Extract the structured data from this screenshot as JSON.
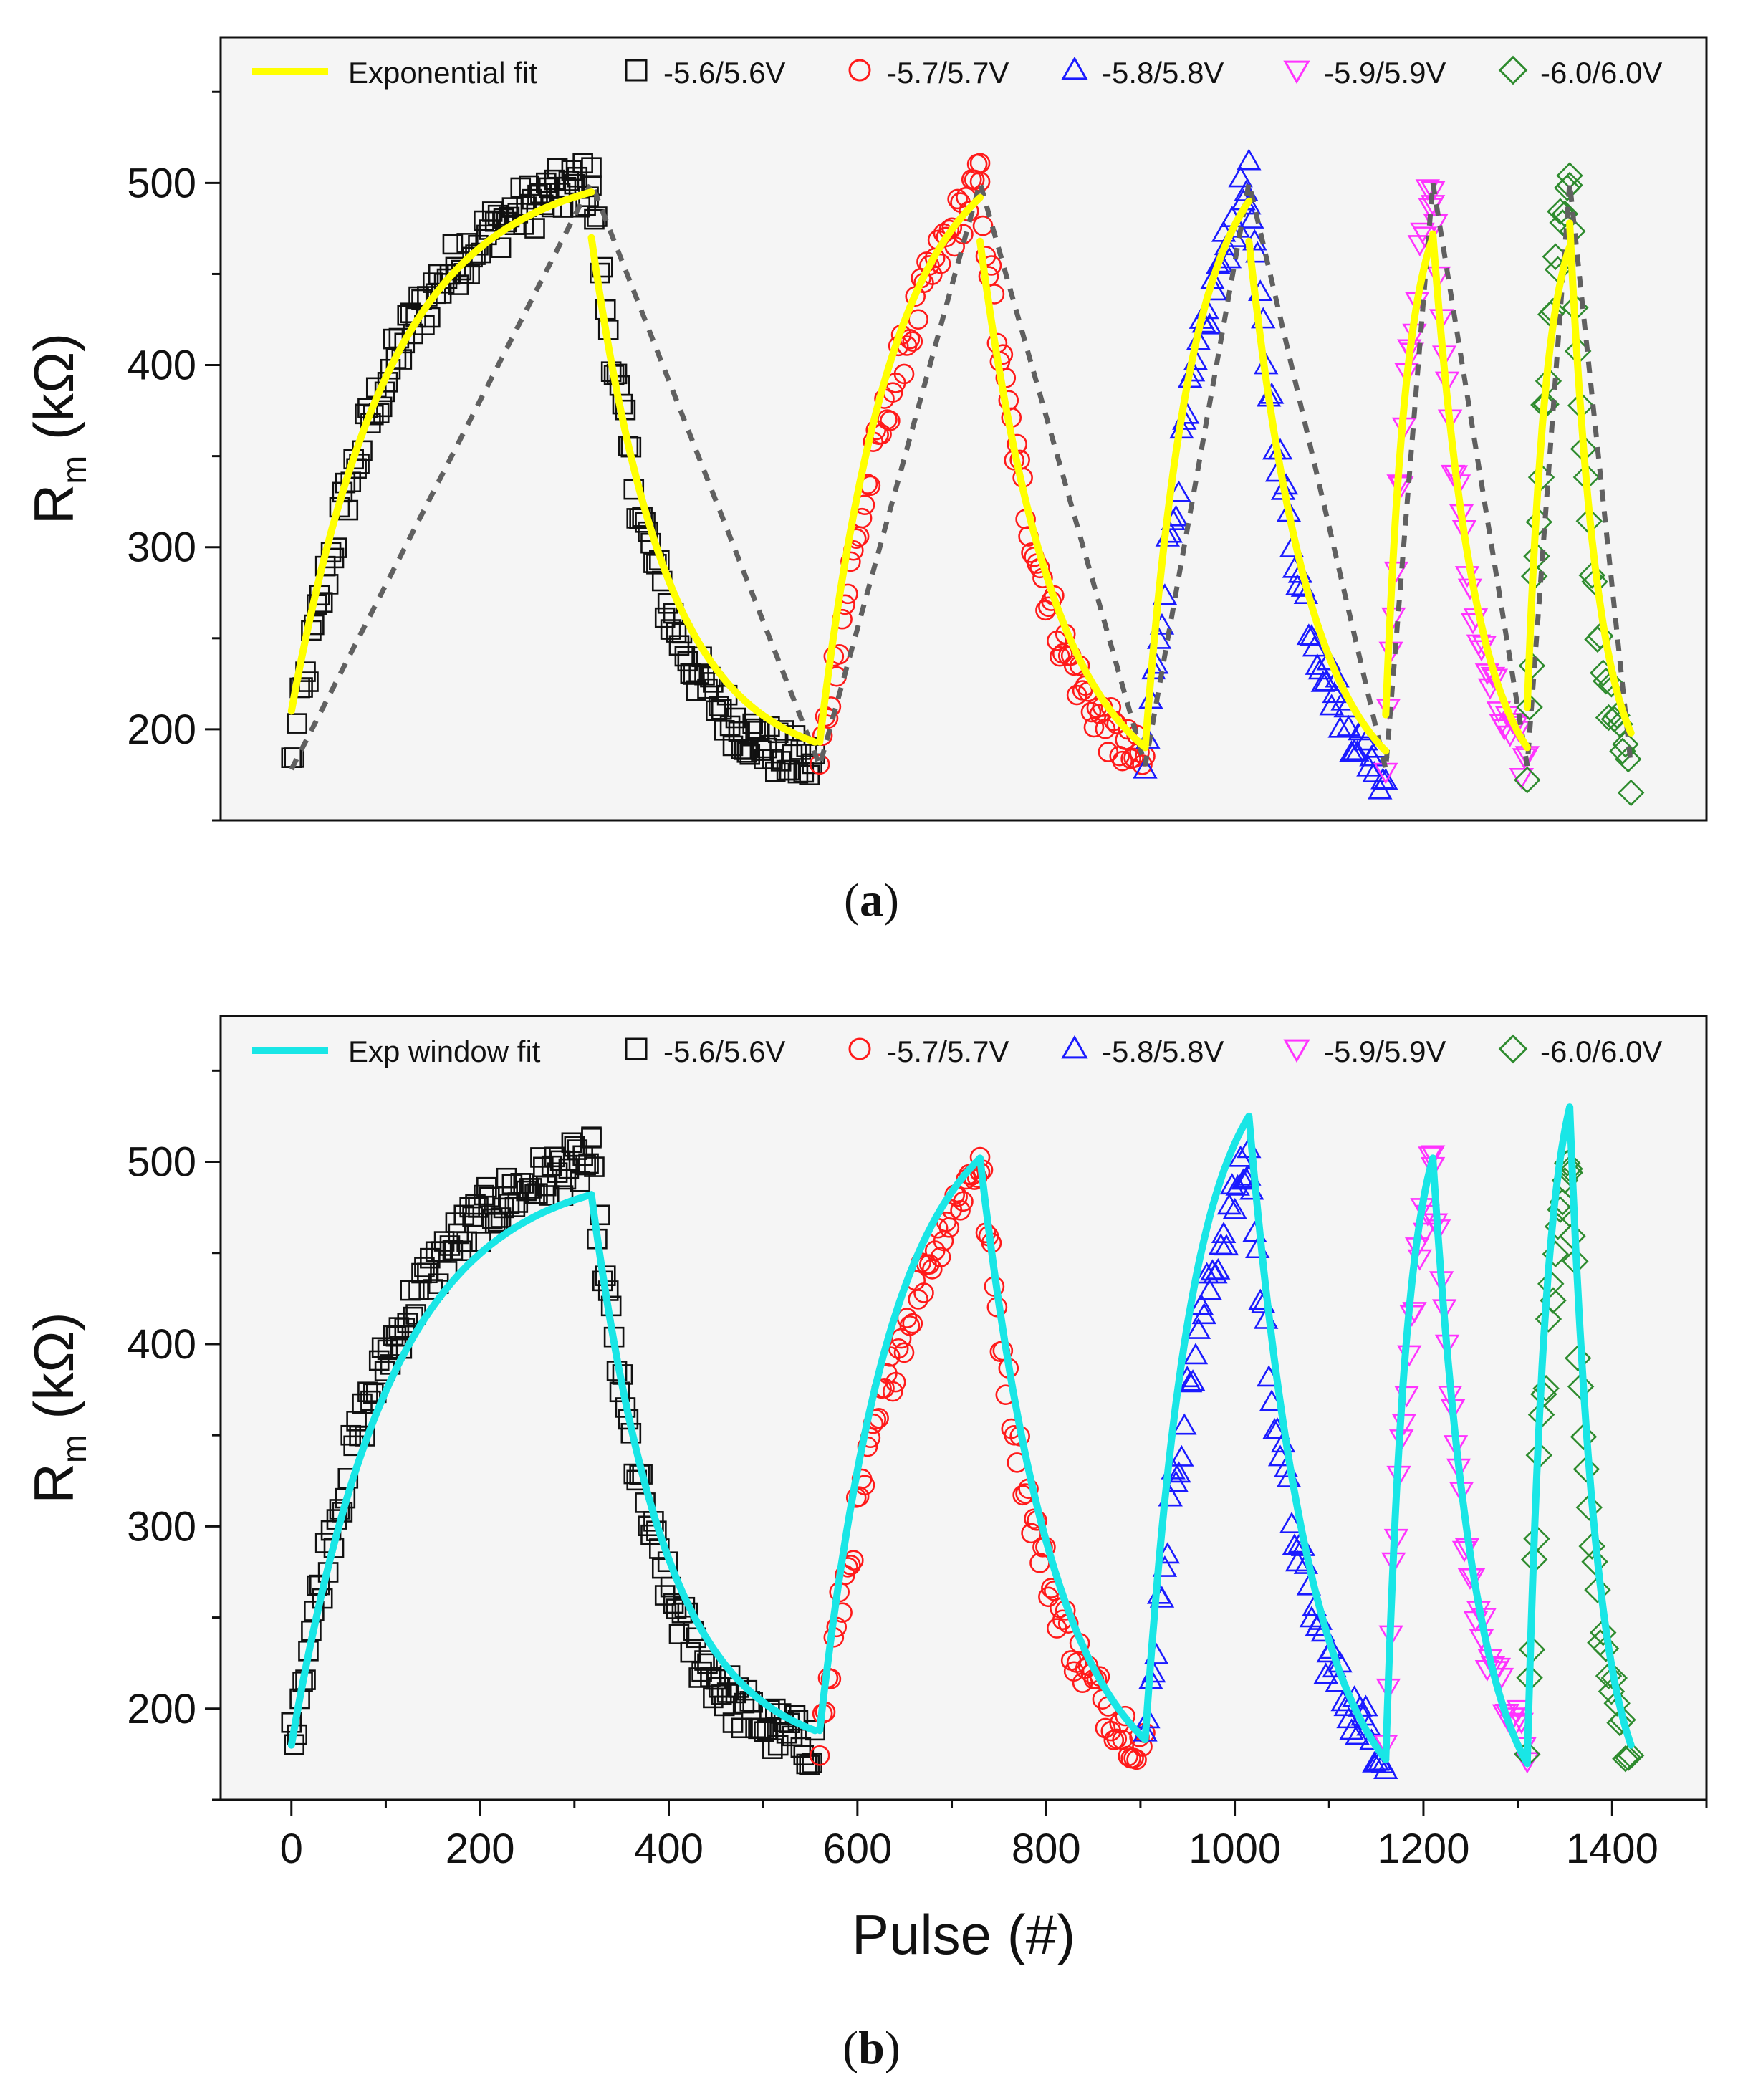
{
  "chart_data": [
    {
      "type": "scatter",
      "panel_label": "a",
      "fit_legend": "Exponential fit",
      "fit_color": "#ffff00",
      "ylabel_main": "R",
      "ylabel_sub": "m",
      "ylabel_unit": " (kΩ)",
      "xlabel": "",
      "xlim": [
        -75,
        1500
      ],
      "ylim": [
        150,
        580
      ],
      "xticks": [],
      "yticks": [
        200,
        300,
        400,
        500
      ],
      "series": [
        {
          "name": "-5.6/5.6V",
          "marker": "square",
          "color": "#111111",
          "x_start": 0,
          "x_peak": 318,
          "x_end": 555,
          "y_min": 180,
          "y_max": 500
        },
        {
          "name": "-5.7/5.7V",
          "marker": "circle",
          "color": "#ff1a1a",
          "x_start": 560,
          "x_peak": 730,
          "x_end": 905,
          "y_min": 180,
          "y_max": 500
        },
        {
          "name": "-5.8/5.8V",
          "marker": "triangle-up",
          "color": "#1a1aff",
          "x_start": 905,
          "x_peak": 1015,
          "x_end": 1160,
          "y_min": 177,
          "y_max": 500
        },
        {
          "name": "-5.9/5.9V",
          "marker": "triangle-down",
          "color": "#ff33ff",
          "x_start": 1160,
          "x_peak": 1210,
          "x_end": 1310,
          "y_min": 180,
          "y_max": 500
        },
        {
          "name": "-6.0/6.0V",
          "marker": "diamond",
          "color": "#2e8b2e",
          "x_start": 1310,
          "x_peak": 1355,
          "x_end": 1420,
          "y_min": 178,
          "y_max": 507
        }
      ],
      "fits": [
        {
          "x": [
            0,
            318
          ],
          "y": [
            210,
            495
          ],
          "shape": "rise"
        },
        {
          "x": [
            318,
            555
          ],
          "y": [
            470,
            193
          ],
          "shape": "decay"
        },
        {
          "x": [
            560,
            730
          ],
          "y": [
            193,
            492
          ],
          "shape": "rise"
        },
        {
          "x": [
            730,
            905
          ],
          "y": [
            468,
            190
          ],
          "shape": "decay"
        },
        {
          "x": [
            905,
            1015
          ],
          "y": [
            190,
            490
          ],
          "shape": "rise"
        },
        {
          "x": [
            1015,
            1160
          ],
          "y": [
            468,
            188
          ],
          "shape": "decay"
        },
        {
          "x": [
            1160,
            1210
          ],
          "y": [
            208,
            470
          ],
          "shape": "rise"
        },
        {
          "x": [
            1210,
            1310
          ],
          "y": [
            472,
            190
          ],
          "shape": "decay"
        },
        {
          "x": [
            1310,
            1355
          ],
          "y": [
            212,
            465
          ],
          "shape": "rise"
        },
        {
          "x": [
            1355,
            1420
          ],
          "y": [
            478,
            198
          ],
          "shape": "decay"
        }
      ],
      "dashed_envelope": {
        "x": [
          0,
          318,
          560,
          730,
          905,
          1015,
          1160,
          1210,
          1310,
          1355,
          1420
        ],
        "y": [
          178,
          500,
          180,
          500,
          180,
          500,
          178,
          500,
          180,
          500,
          180
        ]
      }
    },
    {
      "type": "scatter",
      "panel_label": "b",
      "fit_legend": "Exp window fit",
      "fit_color": "#19e6e6",
      "ylabel_main": "R",
      "ylabel_sub": "m",
      "ylabel_unit": " (kΩ)",
      "xlabel": "Pulse (#)",
      "xlim": [
        -75,
        1500
      ],
      "ylim": [
        150,
        580
      ],
      "xticks": [
        0,
        200,
        400,
        600,
        800,
        1000,
        1200,
        1400
      ],
      "yticks": [
        200,
        300,
        400,
        500
      ],
      "series": [
        {
          "name": "-5.6/5.6V",
          "marker": "square",
          "color": "#111111",
          "x_start": 0,
          "x_peak": 318,
          "x_end": 555,
          "y_min": 180,
          "y_max": 500
        },
        {
          "name": "-5.7/5.7V",
          "marker": "circle",
          "color": "#ff1a1a",
          "x_start": 560,
          "x_peak": 730,
          "x_end": 905,
          "y_min": 180,
          "y_max": 500
        },
        {
          "name": "-5.8/5.8V",
          "marker": "triangle-up",
          "color": "#1a1aff",
          "x_start": 905,
          "x_peak": 1015,
          "x_end": 1160,
          "y_min": 177,
          "y_max": 500
        },
        {
          "name": "-5.9/5.9V",
          "marker": "triangle-down",
          "color": "#ff33ff",
          "x_start": 1160,
          "x_peak": 1210,
          "x_end": 1310,
          "y_min": 180,
          "y_max": 500
        },
        {
          "name": "-6.0/6.0V",
          "marker": "diamond",
          "color": "#2e8b2e",
          "x_start": 1310,
          "x_peak": 1355,
          "x_end": 1420,
          "y_min": 178,
          "y_max": 507
        }
      ],
      "fits": [
        {
          "x": [
            0,
            318
          ],
          "y": [
            180,
            482
          ],
          "shape": "rise"
        },
        {
          "x": [
            318,
            555
          ],
          "y": [
            482,
            188
          ],
          "shape": "decay"
        },
        {
          "x": [
            560,
            730
          ],
          "y": [
            188,
            502
          ],
          "shape": "rise"
        },
        {
          "x": [
            730,
            905
          ],
          "y": [
            502,
            183
          ],
          "shape": "decay"
        },
        {
          "x": [
            905,
            1015
          ],
          "y": [
            183,
            525
          ],
          "shape": "rise"
        },
        {
          "x": [
            1015,
            1160
          ],
          "y": [
            525,
            172
          ],
          "shape": "decay"
        },
        {
          "x": [
            1160,
            1210
          ],
          "y": [
            172,
            502
          ],
          "shape": "rise"
        },
        {
          "x": [
            1210,
            1310
          ],
          "y": [
            502,
            170
          ],
          "shape": "decay"
        },
        {
          "x": [
            1310,
            1355
          ],
          "y": [
            170,
            530
          ],
          "shape": "rise"
        },
        {
          "x": [
            1355,
            1420
          ],
          "y": [
            530,
            180
          ],
          "shape": "decay"
        }
      ]
    }
  ]
}
